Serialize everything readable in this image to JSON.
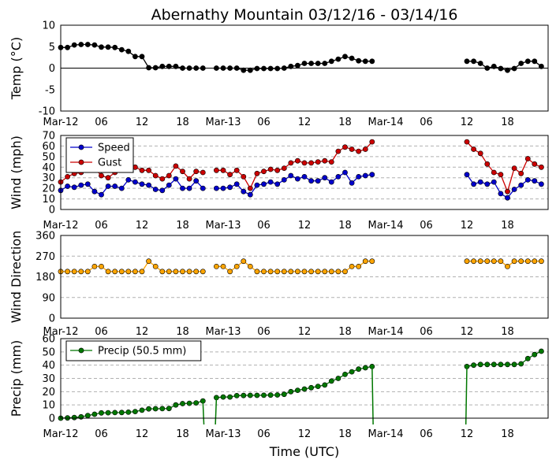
{
  "title": "Abernathy Mountain 03/12/16 - 03/14/16",
  "xlabel": "Time (UTC)",
  "x_tick_labels": [
    "Mar-12",
    "06",
    "12",
    "18",
    "Mar-13",
    "06",
    "12",
    "18",
    "Mar-14",
    "06",
    "12",
    "18"
  ],
  "x_range_hours": [
    0,
    72
  ],
  "colors": {
    "temp": "#000000",
    "speed": "#0000cc",
    "gust": "#cc0000",
    "dir": "#ffa500",
    "precip": "#007700",
    "grid": "#b0b0b0"
  },
  "chart_data": [
    {
      "type": "line",
      "title": "",
      "ylabel": "Temp (°C)",
      "xlabel": "",
      "ylim": [
        -10,
        10
      ],
      "yticks": [
        -10,
        -5,
        0,
        5,
        10
      ],
      "zero_line": true,
      "gridlines": false,
      "legend": null,
      "series": [
        {
          "name": "Temp",
          "color_key": "temp",
          "segments": [
            {
              "start": 0,
              "values": [
                4.8,
                4.8,
                5.4,
                5.5,
                5.5,
                5.4,
                4.9,
                4.9,
                4.8,
                4.3,
                3.9,
                2.7,
                2.7,
                0.1,
                0.1,
                0.4,
                0.4,
                0.4,
                0.0,
                0.0,
                0.0,
                0.0
              ]
            },
            {
              "start": 23,
              "values": [
                0.0,
                0.0,
                0.0,
                0.0,
                -0.5,
                -0.5,
                -0.1,
                -0.1,
                -0.1,
                -0.1,
                0.0,
                0.4,
                0.6,
                1.1,
                1.1,
                1.1,
                1.1,
                1.6,
                2.1,
                2.7,
                2.3,
                1.7,
                1.6,
                1.6
              ]
            },
            {
              "start": 60,
              "values": [
                1.6,
                1.6,
                1.1,
                0.0,
                0.4,
                -0.1,
                -0.5,
                -0.1,
                1.1,
                1.6,
                1.6,
                0.4
              ]
            }
          ]
        }
      ]
    },
    {
      "type": "line",
      "title": "",
      "ylabel": "Wind (mph)",
      "xlabel": "",
      "ylim": [
        0,
        70
      ],
      "yticks": [
        0,
        10,
        20,
        30,
        40,
        50,
        60,
        70
      ],
      "zero_line": false,
      "gridlines": true,
      "legend": "upper-left",
      "series": [
        {
          "name": "Speed",
          "color_key": "speed",
          "segments": [
            {
              "start": 0,
              "values": [
                18,
                22,
                21,
                23,
                24,
                17,
                14,
                22,
                22,
                20,
                28,
                26,
                24,
                23,
                19,
                18,
                23,
                29,
                20,
                20,
                27,
                20
              ]
            },
            {
              "start": 23,
              "values": [
                20,
                20,
                21,
                24,
                17,
                14,
                23,
                24,
                26,
                24,
                28,
                32,
                29,
                31,
                27,
                27,
                30,
                26,
                31,
                35,
                25,
                31,
                32,
                33
              ]
            },
            {
              "start": 60,
              "values": [
                33,
                24,
                26,
                24,
                26,
                15,
                11,
                19,
                23,
                28,
                27,
                24
              ]
            }
          ]
        },
        {
          "name": "Gust",
          "color_key": "gust",
          "segments": [
            {
              "start": 0,
              "values": [
                26,
                31,
                34,
                35,
                38,
                39,
                32,
                30,
                35,
                38,
                41,
                40,
                37,
                37,
                32,
                29,
                32,
                41,
                36,
                29,
                36,
                35
              ]
            },
            {
              "start": 23,
              "values": [
                37,
                37,
                33,
                37,
                31,
                20,
                34,
                36,
                38,
                37,
                39,
                44,
                46,
                44,
                44,
                45,
                46,
                45,
                55,
                59,
                57,
                55,
                57,
                64
              ]
            },
            {
              "start": 60,
              "values": [
                64,
                57,
                53,
                43,
                35,
                33,
                17,
                39,
                34,
                48,
                43,
                40
              ]
            }
          ]
        }
      ]
    },
    {
      "type": "line",
      "title": "",
      "ylabel": "Wind Direction",
      "xlabel": "",
      "ylim": [
        0,
        360
      ],
      "yticks": [
        0,
        90,
        180,
        270,
        360
      ],
      "zero_line": false,
      "gridlines": true,
      "legend": null,
      "series": [
        {
          "name": "Direction",
          "color_key": "dir",
          "segments": [
            {
              "start": 0,
              "values": [
                203,
                203,
                203,
                203,
                203,
                225,
                225,
                203,
                203,
                203,
                203,
                203,
                203,
                248,
                225,
                203,
                203,
                203,
                203,
                203,
                203,
                203
              ]
            },
            {
              "start": 23,
              "values": [
                225,
                225,
                203,
                225,
                248,
                225,
                203,
                203,
                203,
                203,
                203,
                203,
                203,
                203,
                203,
                203,
                203,
                203,
                203,
                203,
                225,
                225,
                248,
                248
              ]
            },
            {
              "start": 60,
              "values": [
                248,
                248,
                248,
                248,
                248,
                248,
                225,
                248,
                248,
                248,
                248,
                248
              ]
            }
          ]
        }
      ]
    },
    {
      "type": "line",
      "title": "",
      "ylabel": "Precip (mm)",
      "xlabel": "",
      "ylim": [
        0,
        60
      ],
      "yticks": [
        0,
        10,
        20,
        30,
        40,
        50,
        60
      ],
      "zero_line": false,
      "gridlines": true,
      "legend": "upper-left",
      "series": [
        {
          "name": "Precip (50.5 mm)",
          "color_key": "precip",
          "segments": [
            {
              "start": 0,
              "values": [
                0.0,
                0.2,
                0.5,
                1.0,
                2.0,
                3.0,
                4.0,
                4.1,
                4.2,
                4.3,
                4.5,
                5.0,
                6.0,
                7.0,
                7.1,
                7.2,
                7.3,
                10.0,
                11.0,
                11.2,
                11.5,
                13.0
              ]
            },
            {
              "start": 23,
              "values": [
                15.5,
                16.0,
                16.0,
                17.0,
                17.1,
                17.2,
                17.2,
                17.3,
                17.4,
                17.5,
                18.0,
                20.0,
                21.0,
                22.0,
                23.0,
                24.0,
                25.0,
                28.0,
                30.0,
                33.0,
                35.0,
                37.0,
                38.0,
                39.0
              ]
            },
            {
              "start": 60,
              "values": [
                39.0,
                40.0,
                40.5,
                40.5,
                40.5,
                40.5,
                40.5,
                40.5,
                41.0,
                45.0,
                48.0,
                50.5
              ]
            }
          ]
        }
      ]
    }
  ]
}
